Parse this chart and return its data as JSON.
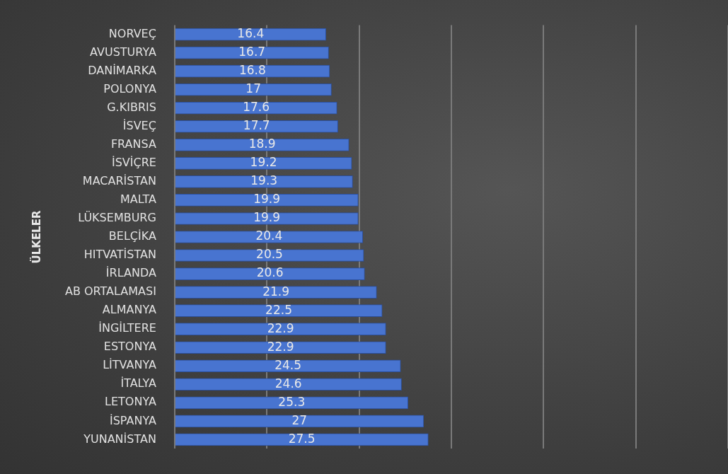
{
  "chart_data": {
    "type": "bar",
    "orientation": "horizontal",
    "ylabel": "ÜLKELER",
    "categories": [
      "NORVEÇ",
      "AVUSTURYA",
      "DANİMARKA",
      "POLONYA",
      "G.KIBRIS",
      "İSVEÇ",
      "FRANSA",
      "İSVİÇRE",
      "MACARİSTAN",
      "MALTA",
      "LÜKSEMBURG",
      "BELÇİKA",
      "HITVATİSTAN",
      "İRLANDA",
      "AB ORTALAMASI",
      "ALMANYA",
      "İNGİLTERE",
      "ESTONYA",
      "LİTVANYA",
      "İTALYA",
      "LETONYA",
      "İSPANYA",
      "YUNANİSTAN"
    ],
    "values": [
      16.4,
      16.7,
      16.8,
      17,
      17.6,
      17.7,
      18.9,
      19.2,
      19.3,
      19.9,
      19.9,
      20.4,
      20.5,
      20.6,
      21.9,
      22.5,
      22.9,
      22.9,
      24.5,
      24.6,
      25.3,
      27,
      27.5
    ],
    "color": "#4874d0",
    "xlim": [
      0,
      60
    ],
    "xticks": [
      {
        "value": 0,
        "label": null
      },
      {
        "value": 10,
        "label": null
      },
      {
        "value": 20,
        "label": null
      },
      {
        "value": 30,
        "label": null
      },
      {
        "value": 40,
        "label": null
      },
      {
        "value": 50,
        "label": null
      },
      {
        "value": 60,
        "label": null
      }
    ],
    "grid": "x",
    "tick_labels": "y",
    "data_labels": true
  }
}
